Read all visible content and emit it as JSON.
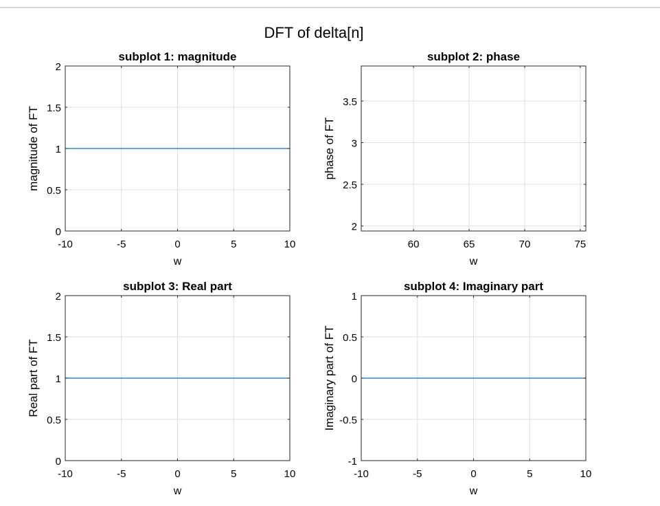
{
  "figure_title": "DFT of delta[n]",
  "colors": {
    "line": "#0072bd",
    "grid": "#dfdfdf",
    "axis": "#262626",
    "text": "#000000"
  },
  "chart_data": [
    {
      "type": "line",
      "title": "subplot 1: magnitude",
      "xlabel": "w",
      "ylabel": "magnitude of FT",
      "xlim": [
        -10,
        10
      ],
      "ylim": [
        0,
        2
      ],
      "xticks": [
        -10,
        -5,
        0,
        5,
        10
      ],
      "xtick_labels": [
        "-10",
        "-5",
        "0",
        "5",
        "10"
      ],
      "yticks": [
        0,
        0.5,
        1,
        1.5,
        2
      ],
      "ytick_labels": [
        "0",
        "0.5",
        "1",
        "1.5",
        "2"
      ],
      "grid": true,
      "series": [
        {
          "x": [
            -10,
            10
          ],
          "y": [
            1,
            1
          ]
        }
      ]
    },
    {
      "type": "line",
      "title": "subplot 2: phase",
      "xlabel": "w",
      "ylabel": "phase of FT",
      "xlim": [
        55.3,
        75.5
      ],
      "ylim": [
        1.94,
        3.92
      ],
      "xticks": [
        60,
        65,
        70,
        75
      ],
      "xtick_labels": [
        "60",
        "65",
        "70",
        "75"
      ],
      "yticks": [
        2,
        2.5,
        3,
        3.5
      ],
      "ytick_labels": [
        "2",
        "2.5",
        "3",
        "3.5"
      ],
      "grid": true,
      "series": []
    },
    {
      "type": "line",
      "title": "subplot 3: Real part",
      "xlabel": "w",
      "ylabel": "Real part of FT",
      "xlim": [
        -10,
        10
      ],
      "ylim": [
        0,
        2
      ],
      "xticks": [
        -10,
        -5,
        0,
        5,
        10
      ],
      "xtick_labels": [
        "-10",
        "-5",
        "0",
        "5",
        "10"
      ],
      "yticks": [
        0,
        0.5,
        1,
        1.5,
        2
      ],
      "ytick_labels": [
        "0",
        "0.5",
        "1",
        "1.5",
        "2"
      ],
      "grid": true,
      "series": [
        {
          "x": [
            -10,
            10
          ],
          "y": [
            1,
            1
          ]
        }
      ]
    },
    {
      "type": "line",
      "title": "subplot 4: Imaginary part",
      "xlabel": "w",
      "ylabel": "Imaginary part of FT",
      "xlim": [
        -10,
        10
      ],
      "ylim": [
        -1,
        1
      ],
      "xticks": [
        -10,
        -5,
        0,
        5,
        10
      ],
      "xtick_labels": [
        "-10",
        "-5",
        "0",
        "5",
        "10"
      ],
      "yticks": [
        -1,
        -0.5,
        0,
        0.5,
        1
      ],
      "ytick_labels": [
        "-1",
        "-0.5",
        "0",
        "0.5",
        "1"
      ],
      "grid": true,
      "series": [
        {
          "x": [
            -10,
            10
          ],
          "y": [
            0,
            0
          ]
        }
      ]
    }
  ]
}
